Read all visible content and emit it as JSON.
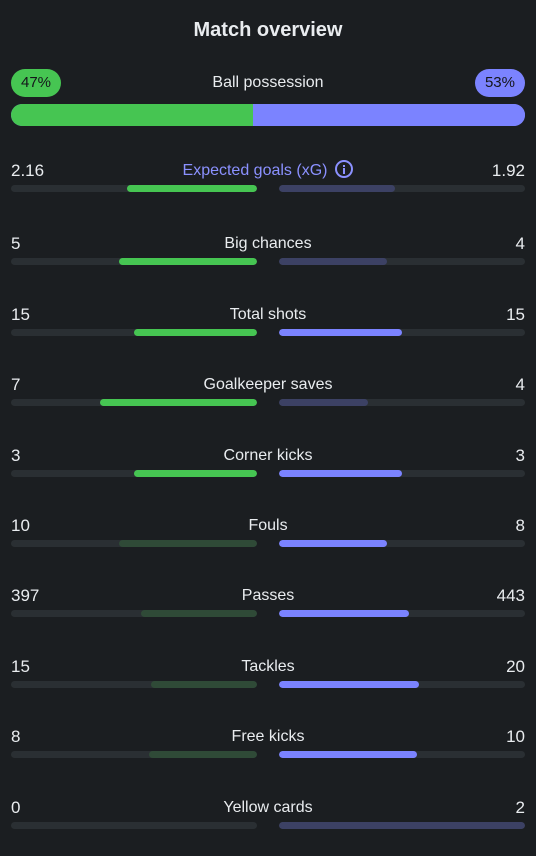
{
  "title": "Match overview",
  "possession": {
    "label": "Ball possession",
    "home": "47%",
    "away": "53%",
    "home_fraction": 0.47
  },
  "colors": {
    "home_strong": "#46c552",
    "home_weak": "#2f4a37",
    "away_strong": "#7b83ff",
    "away_weak": "#3c4164",
    "track": "#2a2f33",
    "xg_label": "#8b91ff"
  },
  "stats": [
    {
      "label": "Expected goals (xG)",
      "home": "2.16",
      "away": "1.92",
      "home_fraction": 0.53,
      "away_fraction": 0.47,
      "home_leads": true,
      "away_leads": false,
      "info": true
    },
    {
      "label": "Big chances",
      "home": "5",
      "away": "4",
      "home_fraction": 0.56,
      "away_fraction": 0.44,
      "home_leads": true,
      "away_leads": false
    },
    {
      "label": "Total shots",
      "home": "15",
      "away": "15",
      "home_fraction": 0.5,
      "away_fraction": 0.5,
      "home_leads": true,
      "away_leads": true
    },
    {
      "label": "Goalkeeper saves",
      "home": "7",
      "away": "4",
      "home_fraction": 0.64,
      "away_fraction": 0.36,
      "home_leads": true,
      "away_leads": false
    },
    {
      "label": "Corner kicks",
      "home": "3",
      "away": "3",
      "home_fraction": 0.5,
      "away_fraction": 0.5,
      "home_leads": true,
      "away_leads": true
    },
    {
      "label": "Fouls",
      "home": "10",
      "away": "8",
      "home_fraction": 0.56,
      "away_fraction": 0.44,
      "home_leads": false,
      "away_leads": true
    },
    {
      "label": "Passes",
      "home": "397",
      "away": "443",
      "home_fraction": 0.47,
      "away_fraction": 0.53,
      "home_leads": false,
      "away_leads": true
    },
    {
      "label": "Tackles",
      "home": "15",
      "away": "20",
      "home_fraction": 0.43,
      "away_fraction": 0.57,
      "home_leads": false,
      "away_leads": true
    },
    {
      "label": "Free kicks",
      "home": "8",
      "away": "10",
      "home_fraction": 0.44,
      "away_fraction": 0.56,
      "home_leads": false,
      "away_leads": true
    },
    {
      "label": "Yellow cards",
      "home": "0",
      "away": "2",
      "home_fraction": 0.0,
      "away_fraction": 1.0,
      "home_leads": true,
      "away_leads": false
    }
  ]
}
